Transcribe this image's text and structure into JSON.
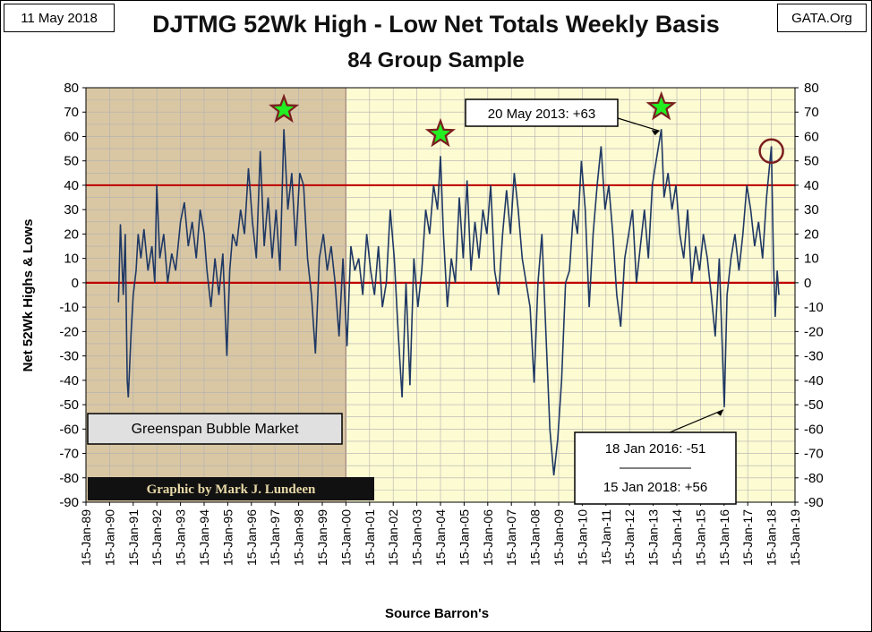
{
  "header": {
    "date": "11 May 2018",
    "source_tag": "GATA.Org"
  },
  "chart_data": {
    "type": "line",
    "title": "DJTMG 52Wk High - Low Net Totals Weekly Basis",
    "subtitle": "84 Group Sample",
    "xlabel": "Source Barron's",
    "ylabel": "Net 52Wk Highs & Lows",
    "ylim": [
      -90,
      80
    ],
    "yticks": [
      80,
      70,
      60,
      50,
      40,
      30,
      20,
      10,
      0,
      -10,
      -20,
      -30,
      -40,
      -50,
      -60,
      -70,
      -80,
      -90
    ],
    "x_tick_labels": [
      "15-Jan-89",
      "15-Jan-90",
      "15-Jan-91",
      "15-Jan-92",
      "15-Jan-93",
      "15-Jan-94",
      "15-Jan-95",
      "15-Jan-96",
      "15-Jan-97",
      "15-Jan-98",
      "15-Jan-99",
      "15-Jan-00",
      "15-Jan-01",
      "15-Jan-02",
      "15-Jan-03",
      "15-Jan-04",
      "15-Jan-05",
      "15-Jan-06",
      "15-Jan-07",
      "15-Jan-08",
      "15-Jan-09",
      "15-Jan-10",
      "15-Jan-11",
      "15-Jan-12",
      "15-Jan-13",
      "15-Jan-14",
      "15-Jan-15",
      "15-Jan-16",
      "15-Jan-17",
      "15-Jan-18",
      "15-Jan-19"
    ],
    "xlim": [
      "1989-01-15",
      "2019-01-15"
    ],
    "series": [
      {
        "color": "#1f3864",
        "points": [
          [
            "1990-06-01",
            -8
          ],
          [
            "1990-07-01",
            24
          ],
          [
            "1990-08-15",
            -5
          ],
          [
            "1990-09-15",
            20
          ],
          [
            "1990-10-15",
            -40
          ],
          [
            "1990-11-01",
            -47
          ],
          [
            "1990-12-15",
            -20
          ],
          [
            "1991-01-15",
            -5
          ],
          [
            "1991-03-01",
            5
          ],
          [
            "1991-04-01",
            20
          ],
          [
            "1991-05-15",
            10
          ],
          [
            "1991-07-01",
            22
          ],
          [
            "1991-09-01",
            5
          ],
          [
            "1991-11-01",
            15
          ],
          [
            "1991-12-15",
            0
          ],
          [
            "1992-01-15",
            40
          ],
          [
            "1992-03-01",
            10
          ],
          [
            "1992-05-01",
            20
          ],
          [
            "1992-07-01",
            0
          ],
          [
            "1992-09-01",
            12
          ],
          [
            "1992-11-01",
            5
          ],
          [
            "1993-01-15",
            25
          ],
          [
            "1993-03-15",
            33
          ],
          [
            "1993-05-15",
            15
          ],
          [
            "1993-07-15",
            25
          ],
          [
            "1993-09-15",
            10
          ],
          [
            "1993-11-15",
            30
          ],
          [
            "1994-01-15",
            20
          ],
          [
            "1994-03-01",
            5
          ],
          [
            "1994-05-01",
            -10
          ],
          [
            "1994-07-01",
            10
          ],
          [
            "1994-09-01",
            -5
          ],
          [
            "1994-11-01",
            12
          ],
          [
            "1995-01-01",
            -30
          ],
          [
            "1995-02-15",
            5
          ],
          [
            "1995-04-01",
            20
          ],
          [
            "1995-06-01",
            15
          ],
          [
            "1995-08-01",
            30
          ],
          [
            "1995-10-01",
            20
          ],
          [
            "1995-12-01",
            47
          ],
          [
            "1996-02-01",
            25
          ],
          [
            "1996-04-01",
            10
          ],
          [
            "1996-06-01",
            54
          ],
          [
            "1996-08-01",
            15
          ],
          [
            "1996-10-01",
            35
          ],
          [
            "1996-12-01",
            10
          ],
          [
            "1997-02-01",
            30
          ],
          [
            "1997-04-01",
            5
          ],
          [
            "1997-06-01",
            63
          ],
          [
            "1997-08-01",
            30
          ],
          [
            "1997-10-01",
            45
          ],
          [
            "1997-12-01",
            15
          ],
          [
            "1998-02-01",
            45
          ],
          [
            "1998-04-01",
            40
          ],
          [
            "1998-06-01",
            10
          ],
          [
            "1998-08-01",
            -5
          ],
          [
            "1998-10-01",
            -29
          ],
          [
            "1998-12-01",
            10
          ],
          [
            "1999-02-01",
            20
          ],
          [
            "1999-04-01",
            5
          ],
          [
            "1999-06-01",
            15
          ],
          [
            "1999-08-01",
            0
          ],
          [
            "1999-10-01",
            -22
          ],
          [
            "1999-12-01",
            10
          ],
          [
            "2000-02-01",
            -26
          ],
          [
            "2000-04-01",
            15
          ],
          [
            "2000-06-01",
            5
          ],
          [
            "2000-08-01",
            10
          ],
          [
            "2000-10-01",
            -5
          ],
          [
            "2000-12-01",
            20
          ],
          [
            "2001-02-01",
            5
          ],
          [
            "2001-04-01",
            -5
          ],
          [
            "2001-06-01",
            15
          ],
          [
            "2001-08-01",
            -10
          ],
          [
            "2001-10-01",
            0
          ],
          [
            "2001-12-01",
            30
          ],
          [
            "2002-02-01",
            10
          ],
          [
            "2002-04-01",
            -20
          ],
          [
            "2002-06-01",
            -47
          ],
          [
            "2002-08-01",
            0
          ],
          [
            "2002-10-01",
            -42
          ],
          [
            "2002-12-01",
            10
          ],
          [
            "2003-02-01",
            -10
          ],
          [
            "2003-04-01",
            5
          ],
          [
            "2003-06-01",
            30
          ],
          [
            "2003-08-01",
            20
          ],
          [
            "2003-10-01",
            40
          ],
          [
            "2003-12-01",
            30
          ],
          [
            "2004-01-15",
            52
          ],
          [
            "2004-03-01",
            20
          ],
          [
            "2004-05-01",
            -10
          ],
          [
            "2004-07-01",
            10
          ],
          [
            "2004-09-01",
            0
          ],
          [
            "2004-11-01",
            35
          ],
          [
            "2005-01-01",
            10
          ],
          [
            "2005-03-01",
            42
          ],
          [
            "2005-05-01",
            5
          ],
          [
            "2005-07-01",
            25
          ],
          [
            "2005-09-01",
            10
          ],
          [
            "2005-11-01",
            30
          ],
          [
            "2006-01-01",
            20
          ],
          [
            "2006-03-01",
            40
          ],
          [
            "2006-05-01",
            5
          ],
          [
            "2006-07-01",
            -5
          ],
          [
            "2006-09-01",
            20
          ],
          [
            "2006-11-01",
            38
          ],
          [
            "2007-01-01",
            20
          ],
          [
            "2007-03-01",
            45
          ],
          [
            "2007-05-01",
            30
          ],
          [
            "2007-07-01",
            10
          ],
          [
            "2007-09-01",
            0
          ],
          [
            "2007-11-01",
            -10
          ],
          [
            "2008-01-01",
            -41
          ],
          [
            "2008-03-01",
            0
          ],
          [
            "2008-05-01",
            20
          ],
          [
            "2008-07-01",
            -20
          ],
          [
            "2008-09-01",
            -60
          ],
          [
            "2008-11-01",
            -79
          ],
          [
            "2009-01-01",
            -64
          ],
          [
            "2009-03-01",
            -40
          ],
          [
            "2009-05-01",
            0
          ],
          [
            "2009-07-01",
            5
          ],
          [
            "2009-09-01",
            30
          ],
          [
            "2009-11-01",
            20
          ],
          [
            "2010-01-01",
            50
          ],
          [
            "2010-03-01",
            30
          ],
          [
            "2010-05-01",
            -10
          ],
          [
            "2010-07-01",
            20
          ],
          [
            "2010-09-01",
            40
          ],
          [
            "2010-11-01",
            56
          ],
          [
            "2011-01-01",
            30
          ],
          [
            "2011-03-01",
            40
          ],
          [
            "2011-05-01",
            20
          ],
          [
            "2011-07-01",
            -5
          ],
          [
            "2011-09-01",
            -18
          ],
          [
            "2011-11-01",
            10
          ],
          [
            "2012-01-01",
            20
          ],
          [
            "2012-03-01",
            30
          ],
          [
            "2012-05-01",
            0
          ],
          [
            "2012-07-01",
            15
          ],
          [
            "2012-09-01",
            30
          ],
          [
            "2012-11-01",
            10
          ],
          [
            "2013-01-01",
            40
          ],
          [
            "2013-03-01",
            50
          ],
          [
            "2013-05-20",
            63
          ],
          [
            "2013-07-01",
            35
          ],
          [
            "2013-09-01",
            45
          ],
          [
            "2013-11-01",
            30
          ],
          [
            "2014-01-01",
            40
          ],
          [
            "2014-03-01",
            20
          ],
          [
            "2014-05-01",
            10
          ],
          [
            "2014-07-01",
            30
          ],
          [
            "2014-09-01",
            0
          ],
          [
            "2014-11-01",
            15
          ],
          [
            "2015-01-01",
            5
          ],
          [
            "2015-03-01",
            20
          ],
          [
            "2015-05-01",
            10
          ],
          [
            "2015-07-01",
            -5
          ],
          [
            "2015-09-01",
            -22
          ],
          [
            "2015-11-01",
            10
          ],
          [
            "2016-01-18",
            -51
          ],
          [
            "2016-03-01",
            -5
          ],
          [
            "2016-05-01",
            10
          ],
          [
            "2016-07-01",
            20
          ],
          [
            "2016-09-01",
            5
          ],
          [
            "2016-11-01",
            20
          ],
          [
            "2017-01-01",
            40
          ],
          [
            "2017-03-01",
            30
          ],
          [
            "2017-05-01",
            15
          ],
          [
            "2017-07-01",
            25
          ],
          [
            "2017-09-01",
            10
          ],
          [
            "2017-11-01",
            35
          ],
          [
            "2018-01-15",
            56
          ],
          [
            "2018-02-15",
            10
          ],
          [
            "2018-03-15",
            -14
          ],
          [
            "2018-04-15",
            5
          ],
          [
            "2018-05-11",
            -5
          ]
        ]
      }
    ],
    "reference_lines": [
      {
        "y": 40,
        "color": "#c00000"
      },
      {
        "y": 0,
        "color": "#c00000"
      }
    ],
    "shaded_region": {
      "start": "1989-01-15",
      "end": "2000-01-15",
      "label": "Greenspan Bubble Market",
      "color": "#d9c7a4"
    },
    "plot_background": "#fdfbd2",
    "grid": true,
    "stars": [
      {
        "date": "1997-06-01",
        "y": 71
      },
      {
        "date": "2004-01-15",
        "y": 61
      },
      {
        "date": "2013-05-20",
        "y": 72
      }
    ],
    "circle_marker": {
      "date": "2018-01-15",
      "y": 54
    },
    "annotations": [
      {
        "text": "20 May 2013: +63",
        "date": "2013-05-20",
        "y": 63
      },
      {
        "text": "18 Jan 2016: -51",
        "date": "2016-01-18",
        "y": -51
      },
      {
        "text": "15 Jan 2018: +56",
        "date": "2018-01-15",
        "y": 56
      }
    ],
    "credit": "Graphic by Mark J. Lundeen"
  }
}
